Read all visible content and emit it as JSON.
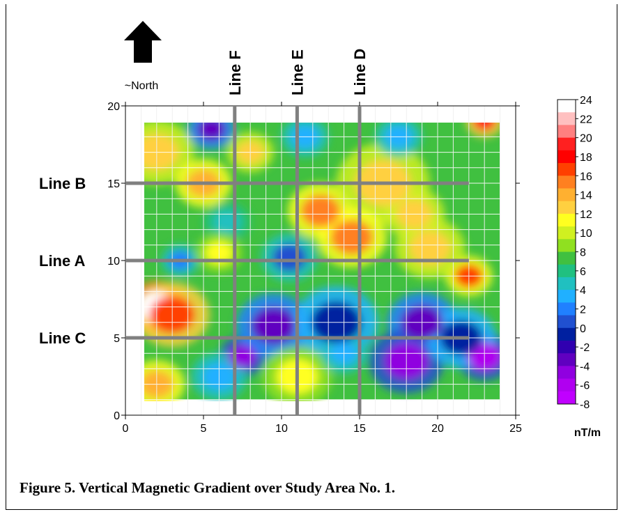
{
  "caption": "Figure 5.  Vertical Magnetic Gradient over Study Area No. 1.",
  "north_label": "~North",
  "unit_label": "nT/m",
  "chart_data": {
    "type": "heatmap",
    "title": "",
    "xlabel": "",
    "ylabel": "",
    "xlim": [
      0,
      25
    ],
    "ylim": [
      0,
      20
    ],
    "x_ticks": [
      0,
      5,
      10,
      15,
      20,
      25
    ],
    "y_ticks": [
      0,
      5,
      10,
      15,
      20
    ],
    "grid": true,
    "data_extent": {
      "x": [
        1,
        24
      ],
      "y": [
        1,
        19
      ]
    },
    "colorbar": {
      "unit": "nT/m",
      "ticks": [
        24,
        22,
        20,
        18,
        16,
        14,
        12,
        10,
        8,
        6,
        4,
        2,
        0,
        -2,
        -4,
        -6,
        -8
      ],
      "tick_labels": [
        "24",
        "22",
        "20",
        "18",
        "16",
        "14",
        "12",
        "10",
        "8",
        "6",
        "4",
        "2",
        "0",
        "-2",
        "-4",
        "-6",
        "-8"
      ],
      "colors": [
        "#ffffff",
        "#ffc0c0",
        "#ff8080",
        "#ff2020",
        "#ff0000",
        "#ff4000",
        "#ff8020",
        "#ffb030",
        "#ffd040",
        "#ffff20",
        "#d0f020",
        "#90e020",
        "#40c040",
        "#20c080",
        "#20c0c0",
        "#20b0ff",
        "#2080ff",
        "#2050d0",
        "#0020a0",
        "#3000b0",
        "#6000c0",
        "#9000e0",
        "#b000f0",
        "#c000ff",
        "#a000c0"
      ]
    },
    "lines": [
      {
        "name": "Line A",
        "orientation": "horizontal",
        "y": 10,
        "from": 0,
        "to": 22
      },
      {
        "name": "Line B",
        "orientation": "horizontal",
        "y": 15,
        "from": 0,
        "to": 22
      },
      {
        "name": "Line C",
        "orientation": "horizontal",
        "y": 5,
        "from": 0,
        "to": 22
      },
      {
        "name": "Line D",
        "orientation": "vertical",
        "x": 15,
        "from": 0,
        "to": 20
      },
      {
        "name": "Line E",
        "orientation": "vertical",
        "x": 11,
        "from": 0,
        "to": 20
      },
      {
        "name": "Line F",
        "orientation": "vertical",
        "x": 7,
        "from": 0,
        "to": 20
      }
    ],
    "anomalies": [
      {
        "x": 2.0,
        "y": 7.0,
        "value": 24,
        "r": 1.3
      },
      {
        "x": 3.0,
        "y": 6.5,
        "value": 18,
        "r": 1.6
      },
      {
        "x": 23.0,
        "y": 19.0,
        "value": 20,
        "r": 0.8
      },
      {
        "x": 5.5,
        "y": 18.5,
        "value": -2,
        "r": 1.0
      },
      {
        "x": 2.0,
        "y": 17.0,
        "value": 13,
        "r": 1.6
      },
      {
        "x": 8.0,
        "y": 17.0,
        "value": 14,
        "r": 1.0
      },
      {
        "x": 5.0,
        "y": 15.0,
        "value": 15,
        "r": 1.2
      },
      {
        "x": 12.5,
        "y": 13.2,
        "value": 16,
        "r": 1.4
      },
      {
        "x": 16.5,
        "y": 15.0,
        "value": 14,
        "r": 2.0
      },
      {
        "x": 14.5,
        "y": 11.5,
        "value": 16,
        "r": 1.5
      },
      {
        "x": 22.0,
        "y": 9.0,
        "value": 17,
        "r": 1.0
      },
      {
        "x": 19.5,
        "y": 10.8,
        "value": 13,
        "r": 1.5
      },
      {
        "x": 10.5,
        "y": 10.2,
        "value": 2,
        "r": 1.2
      },
      {
        "x": 7.5,
        "y": 3.8,
        "value": -4,
        "r": 1.0
      },
      {
        "x": 9.5,
        "y": 5.8,
        "value": -2,
        "r": 1.6
      },
      {
        "x": 13.5,
        "y": 6.0,
        "value": 0,
        "r": 1.8
      },
      {
        "x": 19.0,
        "y": 6.0,
        "value": -3,
        "r": 1.5
      },
      {
        "x": 18.0,
        "y": 3.5,
        "value": -4,
        "r": 1.6
      },
      {
        "x": 23.0,
        "y": 3.8,
        "value": -5,
        "r": 1.2
      },
      {
        "x": 21.5,
        "y": 5.0,
        "value": 0,
        "r": 1.5
      },
      {
        "x": 2.0,
        "y": 2.0,
        "value": 15,
        "r": 1.2
      },
      {
        "x": 11.0,
        "y": 2.5,
        "value": 12,
        "r": 1.5
      },
      {
        "x": 6.0,
        "y": 2.5,
        "value": 4,
        "r": 1.2
      },
      {
        "x": 14.0,
        "y": 4.0,
        "value": 4,
        "r": 1.0
      },
      {
        "x": 11.5,
        "y": 18.0,
        "value": 4,
        "r": 1.0
      },
      {
        "x": 17.5,
        "y": 18.0,
        "value": 4,
        "r": 1.0
      },
      {
        "x": 6.5,
        "y": 12.5,
        "value": 5,
        "r": 1.0
      },
      {
        "x": 3.5,
        "y": 10.0,
        "value": 3,
        "r": 0.8
      },
      {
        "x": 18.5,
        "y": 13.0,
        "value": 13,
        "r": 1.3
      },
      {
        "x": 6.0,
        "y": 10.5,
        "value": 12,
        "r": 1.0
      }
    ],
    "background_value": 8
  }
}
